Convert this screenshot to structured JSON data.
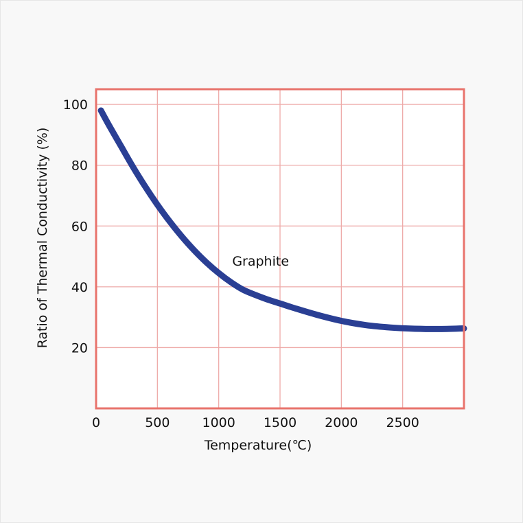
{
  "colors": {
    "background": "#f8f8f8",
    "plot_background": "#ffffff",
    "grid": "#eeaaa8",
    "frame": "#e8736c",
    "series": "#2a3f94"
  },
  "chart_data": {
    "type": "line",
    "title": "",
    "xlabel": "Temperature(℃)",
    "ylabel": "Ratio of Thermal Conductivity (%)",
    "xlim": [
      0,
      3000
    ],
    "ylim": [
      0,
      105
    ],
    "x_ticks": [
      0,
      500,
      1000,
      1500,
      2000,
      2500
    ],
    "y_ticks": [
      20,
      40,
      60,
      80,
      100
    ],
    "grid": true,
    "legend": "none",
    "annotations": [
      {
        "text": "Graphite",
        "x": 1110,
        "y": 47
      }
    ],
    "series": [
      {
        "x": [
          40,
          100,
          200,
          300,
          400,
          500,
          600,
          700,
          800,
          900,
          1000,
          1100,
          1200,
          1300,
          1400,
          1500,
          1600,
          1800,
          2000,
          2200,
          2400,
          2600,
          2800,
          3000
        ],
        "y": [
          98,
          93.5,
          86.5,
          79.5,
          73,
          67,
          61.5,
          56.5,
          52,
          48,
          44.5,
          41.5,
          39,
          37.3,
          35.8,
          34.5,
          33.2,
          30.8,
          28.8,
          27.4,
          26.6,
          26.2,
          26.1,
          26.3
        ]
      }
    ]
  }
}
